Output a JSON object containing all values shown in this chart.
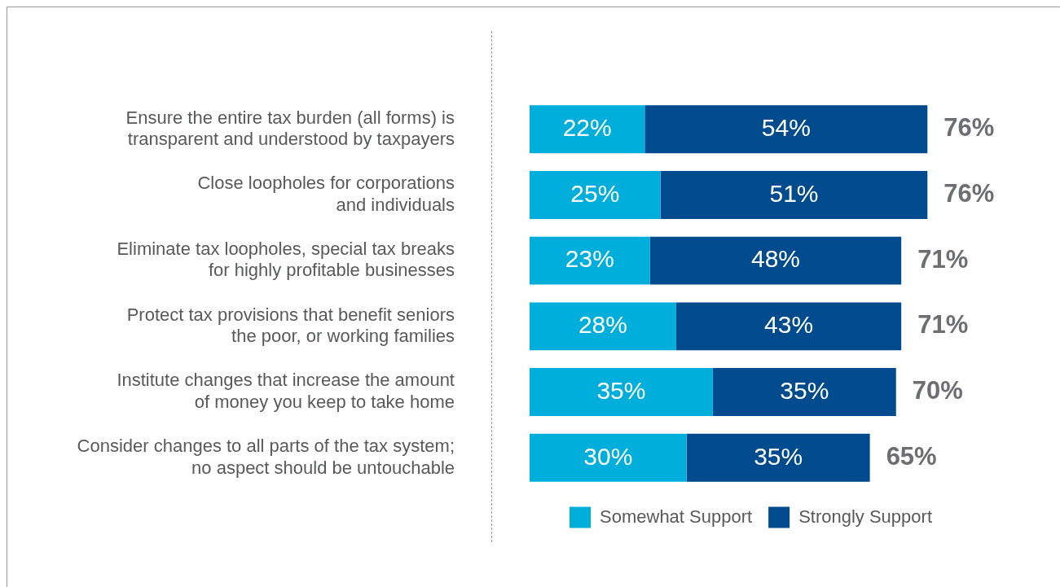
{
  "chart_data": {
    "type": "bar",
    "orientation": "horizontal",
    "stacked": true,
    "legend": "bottom",
    "grid": false,
    "categories": [
      "Ensure the entire tax burden (all forms) is\ntransparent and understood by taxpayers",
      "Close loopholes for corporations\nand individuals",
      "Eliminate tax loopholes, special tax breaks\nfor highly profitable businesses",
      "Protect tax provisions that benefit seniors\nthe poor, or working families",
      "Institute changes that increase the amount\nof money you keep to take home",
      "Consider changes to all parts of the tax system;\nno aspect should be untouchable"
    ],
    "series": [
      {
        "name": "Somewhat Support",
        "color": "#00aedb",
        "values": [
          22,
          25,
          23,
          28,
          35,
          30
        ],
        "value_labels": [
          "22%",
          "25%",
          "23%",
          "28%",
          "35%",
          "30%"
        ]
      },
      {
        "name": "Strongly Support",
        "color": "#004b8d",
        "values": [
          54,
          51,
          48,
          43,
          35,
          35
        ],
        "value_labels": [
          "54%",
          "51%",
          "48%",
          "43%",
          "35%",
          "35%"
        ]
      }
    ],
    "totals": [
      "76%",
      "76%",
      "71%",
      "71%",
      "70%",
      "65%"
    ]
  }
}
